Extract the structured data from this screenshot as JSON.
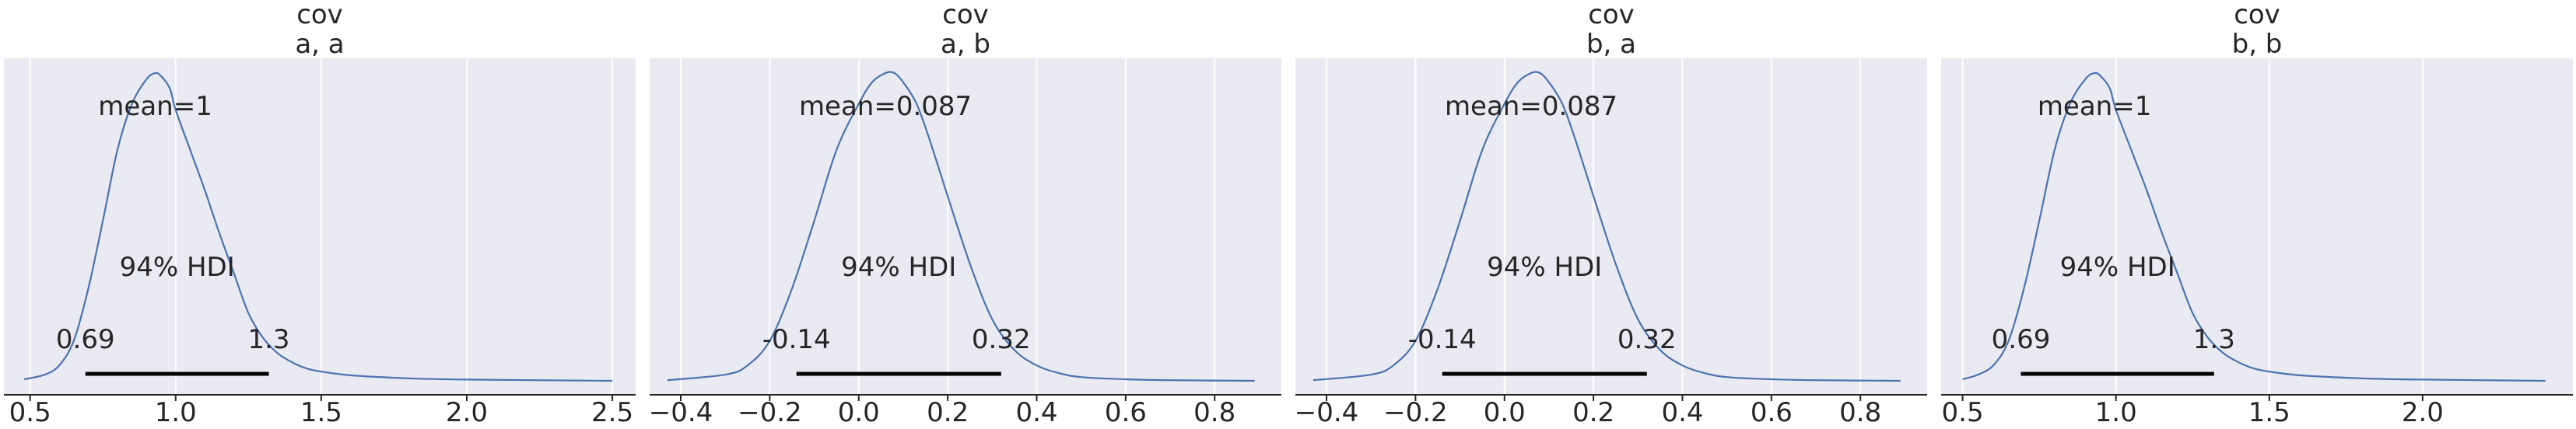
{
  "chart_data": [
    {
      "type": "line",
      "title": "cov",
      "subtitle": "a, a",
      "xlabel": "",
      "ylabel": "",
      "xlim": [
        0.41,
        2.58
      ],
      "xticks": [
        0.5,
        1.0,
        1.5,
        2.0,
        2.5
      ],
      "xtick_labels": [
        "0.5",
        "1.0",
        "1.5",
        "2.0",
        "2.5"
      ],
      "grid": true,
      "mean_label": "mean=1",
      "hdi_label": "94% HDI",
      "hdi": [
        0.69,
        1.32
      ],
      "hdi_low_label": "0.69",
      "hdi_high_label": "1.3",
      "x": [
        0.48,
        0.55,
        0.6,
        0.65,
        0.7,
        0.75,
        0.8,
        0.85,
        0.9,
        0.93,
        0.95,
        0.98,
        1.0,
        1.05,
        1.1,
        1.15,
        1.2,
        1.25,
        1.3,
        1.35,
        1.4,
        1.45,
        1.5,
        1.6,
        1.8,
        2.0,
        2.5
      ],
      "y": [
        0.005,
        0.02,
        0.05,
        0.13,
        0.3,
        0.52,
        0.75,
        0.9,
        0.98,
        1.0,
        0.99,
        0.95,
        0.88,
        0.75,
        0.62,
        0.48,
        0.35,
        0.22,
        0.14,
        0.09,
        0.06,
        0.04,
        0.03,
        0.018,
        0.008,
        0.004,
        0.0
      ]
    },
    {
      "type": "line",
      "title": "cov",
      "subtitle": "a, b",
      "xlabel": "",
      "ylabel": "",
      "xlim": [
        -0.47,
        0.95
      ],
      "xticks": [
        -0.4,
        -0.2,
        0.0,
        0.2,
        0.4,
        0.6,
        0.8
      ],
      "xtick_labels": [
        "−0.4",
        "−0.2",
        "0.0",
        "0.2",
        "0.4",
        "0.6",
        "0.8"
      ],
      "grid": true,
      "mean_label": "mean=0.087",
      "hdi_label": "94% HDI",
      "hdi": [
        -0.14,
        0.32
      ],
      "hdi_low_label": "-0.14",
      "hdi_high_label": "0.32",
      "x": [
        -0.43,
        -0.3,
        -0.25,
        -0.2,
        -0.15,
        -0.1,
        -0.05,
        0.0,
        0.03,
        0.06,
        0.08,
        0.1,
        0.13,
        0.16,
        0.2,
        0.25,
        0.3,
        0.35,
        0.4,
        0.45,
        0.5,
        0.6,
        0.7,
        0.89
      ],
      "y": [
        0.002,
        0.02,
        0.05,
        0.13,
        0.3,
        0.52,
        0.75,
        0.9,
        0.97,
        1.0,
        1.0,
        0.97,
        0.9,
        0.78,
        0.6,
        0.38,
        0.2,
        0.1,
        0.05,
        0.025,
        0.012,
        0.005,
        0.002,
        0.0
      ]
    },
    {
      "type": "line",
      "title": "cov",
      "subtitle": "b, a",
      "xlabel": "",
      "ylabel": "",
      "xlim": [
        -0.47,
        0.95
      ],
      "xticks": [
        -0.4,
        -0.2,
        0.0,
        0.2,
        0.4,
        0.6,
        0.8
      ],
      "xtick_labels": [
        "−0.4",
        "−0.2",
        "0.0",
        "0.2",
        "0.4",
        "0.6",
        "0.8"
      ],
      "grid": true,
      "mean_label": "mean=0.087",
      "hdi_label": "94% HDI",
      "hdi": [
        -0.14,
        0.32
      ],
      "hdi_low_label": "-0.14",
      "hdi_high_label": "0.32",
      "x": [
        -0.43,
        -0.3,
        -0.25,
        -0.2,
        -0.15,
        -0.1,
        -0.05,
        0.0,
        0.03,
        0.06,
        0.08,
        0.1,
        0.13,
        0.16,
        0.2,
        0.25,
        0.3,
        0.35,
        0.4,
        0.45,
        0.5,
        0.6,
        0.7,
        0.89
      ],
      "y": [
        0.002,
        0.02,
        0.05,
        0.13,
        0.3,
        0.52,
        0.75,
        0.9,
        0.97,
        1.0,
        1.0,
        0.97,
        0.9,
        0.78,
        0.6,
        0.38,
        0.2,
        0.1,
        0.05,
        0.025,
        0.012,
        0.005,
        0.002,
        0.0
      ]
    },
    {
      "type": "line",
      "title": "cov",
      "subtitle": "b, b",
      "xlabel": "",
      "ylabel": "",
      "xlim": [
        0.43,
        2.49
      ],
      "xticks": [
        0.5,
        1.0,
        1.5,
        2.0
      ],
      "xtick_labels": [
        "0.5",
        "1.0",
        "1.5",
        "2.0"
      ],
      "grid": true,
      "mean_label": "mean=1",
      "hdi_label": "94% HDI",
      "hdi": [
        0.69,
        1.32
      ],
      "hdi_low_label": "0.69",
      "hdi_high_label": "1.3",
      "x": [
        0.5,
        0.55,
        0.6,
        0.65,
        0.7,
        0.75,
        0.8,
        0.85,
        0.9,
        0.93,
        0.95,
        0.98,
        1.0,
        1.05,
        1.1,
        1.15,
        1.2,
        1.25,
        1.3,
        1.35,
        1.4,
        1.45,
        1.5,
        1.6,
        1.8,
        2.0,
        2.4
      ],
      "y": [
        0.005,
        0.02,
        0.05,
        0.13,
        0.3,
        0.52,
        0.75,
        0.9,
        0.98,
        1.0,
        0.99,
        0.95,
        0.88,
        0.75,
        0.62,
        0.48,
        0.35,
        0.22,
        0.14,
        0.09,
        0.06,
        0.04,
        0.03,
        0.018,
        0.008,
        0.004,
        0.0
      ]
    }
  ],
  "colors": {
    "panel_background": "#eaeaf2",
    "grid": "#ffffff",
    "density_line": "#4c72b0",
    "hdi_bar": "#000000",
    "text": "#262626"
  }
}
